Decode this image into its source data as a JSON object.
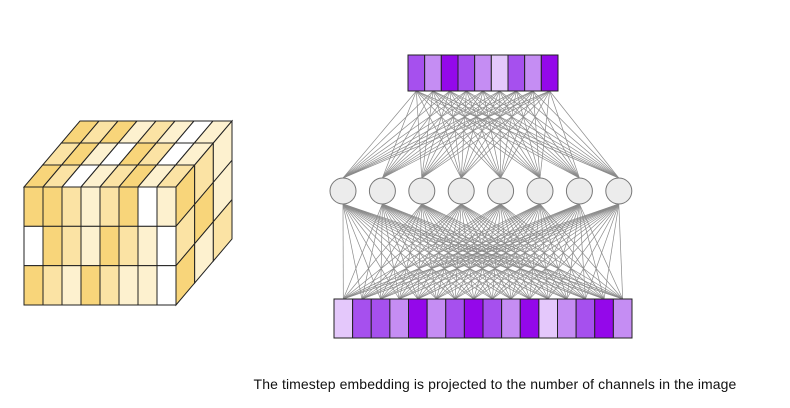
{
  "caption": "The timestep embedding is projected to the number of channels in the image",
  "colors": {
    "stroke": "#222222",
    "edge": "#8a8a8a",
    "node_fill": "#ececec",
    "node_stroke": "#777777",
    "cube_palette": [
      "#ffffff",
      "#fdf1cf",
      "#fbe3a4",
      "#f8d57a",
      "#f5cb61"
    ],
    "purple_palette": [
      "#e4c8fb",
      "#c58df3",
      "#a650ee",
      "#9408ea"
    ]
  },
  "image_tensor": {
    "rows": 3,
    "front_columns": 8,
    "depth": 3,
    "front_shades": [
      [
        3,
        3,
        2,
        1,
        2,
        3,
        0,
        1
      ],
      [
        0,
        3,
        2,
        1,
        3,
        2,
        1,
        0
      ],
      [
        3,
        2,
        1,
        3,
        2,
        1,
        1,
        0
      ]
    ],
    "top_shades": [
      [
        3,
        2,
        0,
        1,
        2,
        3,
        1,
        2
      ],
      [
        2,
        3,
        1,
        0,
        3,
        2,
        0,
        1
      ],
      [
        3,
        2,
        3,
        1,
        2,
        1,
        0,
        1
      ]
    ],
    "side_shades": [
      [
        3,
        2,
        1
      ],
      [
        2,
        3,
        1
      ],
      [
        3,
        1,
        2
      ]
    ]
  },
  "projection": {
    "output_layer": {
      "count": 9,
      "shades": [
        2,
        1,
        3,
        2,
        1,
        0,
        2,
        1,
        3
      ]
    },
    "hidden_layer": {
      "count": 8
    },
    "input_layer": {
      "count": 16,
      "shades": [
        0,
        2,
        2,
        1,
        3,
        1,
        2,
        3,
        2,
        1,
        3,
        0,
        1,
        2,
        3,
        1
      ]
    }
  }
}
